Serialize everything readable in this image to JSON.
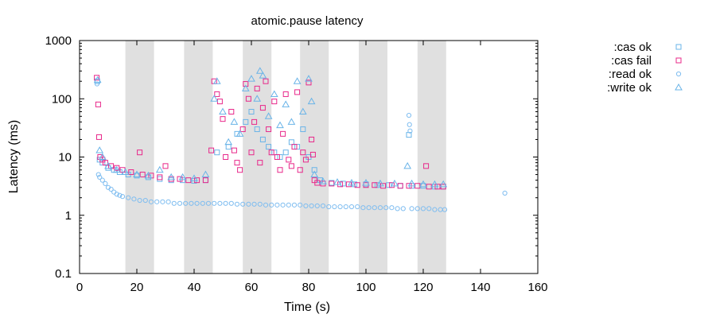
{
  "chart_data": {
    "type": "scatter",
    "title": "atomic.pause latency",
    "xlabel": "Time (s)",
    "ylabel": "Latency (ms)",
    "xlim": [
      0,
      160
    ],
    "ylim": [
      0.1,
      1000
    ],
    "yscale": "log",
    "x_ticks": [
      0,
      20,
      40,
      60,
      80,
      100,
      120,
      140,
      160
    ],
    "x_tick_labels": [
      "0",
      "20",
      "40",
      "60",
      "80",
      "100",
      "120",
      "140",
      "160"
    ],
    "y_ticks": [
      0.1,
      1,
      10,
      100,
      1000
    ],
    "y_tick_labels": [
      "0.1",
      "1",
      "10",
      "100",
      "1000"
    ],
    "grid": false,
    "legend_position": "top-right, outside plot",
    "shaded_intervals": [
      [
        16,
        26
      ],
      [
        36.5,
        46.5
      ],
      [
        57,
        67
      ],
      [
        77,
        87
      ],
      [
        97.5,
        107.5
      ],
      [
        118,
        128
      ]
    ],
    "shaded_color": "#e0e0e0",
    "series": [
      {
        "name": ":cas ok",
        "marker": "square",
        "color": "#6ab4e8",
        "points": [
          [
            6.2,
            200
          ],
          [
            7,
            9
          ],
          [
            8,
            8
          ],
          [
            10,
            6.5
          ],
          [
            12,
            6
          ],
          [
            14,
            5.5
          ],
          [
            17,
            5
          ],
          [
            20,
            4.8
          ],
          [
            24,
            4.5
          ],
          [
            28,
            4.2
          ],
          [
            32,
            4
          ],
          [
            36,
            4
          ],
          [
            40,
            3.9
          ],
          [
            44,
            4
          ],
          [
            48,
            12
          ],
          [
            52,
            15
          ],
          [
            55,
            25
          ],
          [
            58,
            40
          ],
          [
            60,
            60
          ],
          [
            62,
            30
          ],
          [
            64,
            20
          ],
          [
            66,
            15
          ],
          [
            68,
            12
          ],
          [
            70,
            10
          ],
          [
            72,
            12
          ],
          [
            74,
            18
          ],
          [
            76,
            15
          ],
          [
            78,
            30
          ],
          [
            80,
            10
          ],
          [
            82,
            6
          ],
          [
            84,
            4
          ],
          [
            88,
            3.6
          ],
          [
            92,
            3.5
          ],
          [
            96,
            3.4
          ],
          [
            100,
            3.4
          ],
          [
            104,
            3.3
          ],
          [
            108,
            3.3
          ],
          [
            112,
            3.2
          ],
          [
            115,
            24
          ],
          [
            116,
            3.2
          ],
          [
            120,
            3.2
          ],
          [
            124,
            3.1
          ],
          [
            127,
            3.1
          ]
        ]
      },
      {
        "name": ":cas fail",
        "marker": "square",
        "color": "#e8288a",
        "points": [
          [
            6,
            230
          ],
          [
            6.5,
            80
          ],
          [
            6.8,
            22
          ],
          [
            7.2,
            10
          ],
          [
            8,
            9
          ],
          [
            9,
            8
          ],
          [
            11,
            7
          ],
          [
            13,
            6.5
          ],
          [
            15,
            6
          ],
          [
            18,
            5.5
          ],
          [
            21,
            12
          ],
          [
            22,
            5
          ],
          [
            25,
            4.8
          ],
          [
            28,
            4.5
          ],
          [
            30,
            7
          ],
          [
            32,
            4.2
          ],
          [
            35,
            4.2
          ],
          [
            38,
            4
          ],
          [
            41,
            4
          ],
          [
            44,
            4
          ],
          [
            46,
            13
          ],
          [
            47,
            200
          ],
          [
            48,
            120
          ],
          [
            49,
            90
          ],
          [
            50,
            45
          ],
          [
            51,
            10
          ],
          [
            53,
            60
          ],
          [
            54,
            13
          ],
          [
            55,
            8
          ],
          [
            56,
            6
          ],
          [
            57,
            30
          ],
          [
            58,
            180
          ],
          [
            59,
            100
          ],
          [
            60,
            12
          ],
          [
            61,
            40
          ],
          [
            62,
            150
          ],
          [
            63,
            8
          ],
          [
            64,
            70
          ],
          [
            65,
            200
          ],
          [
            66,
            30
          ],
          [
            67,
            12
          ],
          [
            68,
            90
          ],
          [
            69,
            10
          ],
          [
            70,
            6
          ],
          [
            71,
            25
          ],
          [
            72,
            120
          ],
          [
            73,
            9
          ],
          [
            74,
            7
          ],
          [
            75,
            15
          ],
          [
            76,
            130
          ],
          [
            77,
            6
          ],
          [
            78,
            12
          ],
          [
            79,
            9
          ],
          [
            80,
            190
          ],
          [
            81,
            20
          ],
          [
            81.5,
            11
          ],
          [
            82,
            4
          ],
          [
            83,
            3.6
          ],
          [
            85,
            3.5
          ],
          [
            88,
            3.5
          ],
          [
            91,
            3.4
          ],
          [
            94,
            3.4
          ],
          [
            97,
            3.3
          ],
          [
            100,
            3.3
          ],
          [
            103,
            3.3
          ],
          [
            106,
            3.2
          ],
          [
            109,
            3.3
          ],
          [
            112,
            3.2
          ],
          [
            115,
            3.2
          ],
          [
            118,
            3.2
          ],
          [
            121,
            7
          ],
          [
            122,
            3.1
          ],
          [
            125,
            3.1
          ],
          [
            127,
            3.1
          ]
        ]
      },
      {
        "name": ":read ok",
        "marker": "circle",
        "color": "#7fbdf0",
        "points": [
          [
            6.1,
            180
          ],
          [
            6.6,
            5
          ],
          [
            7,
            4.5
          ],
          [
            8,
            4
          ],
          [
            9,
            3.5
          ],
          [
            10,
            3
          ],
          [
            11,
            2.8
          ],
          [
            12,
            2.5
          ],
          [
            13,
            2.3
          ],
          [
            14,
            2.2
          ],
          [
            15,
            2.1
          ],
          [
            17,
            2
          ],
          [
            19,
            1.9
          ],
          [
            21,
            1.8
          ],
          [
            23,
            1.8
          ],
          [
            25,
            1.7
          ],
          [
            27,
            1.7
          ],
          [
            29,
            1.7
          ],
          [
            31,
            1.7
          ],
          [
            33,
            1.6
          ],
          [
            35,
            1.6
          ],
          [
            37,
            1.6
          ],
          [
            39,
            1.6
          ],
          [
            41,
            1.6
          ],
          [
            43,
            1.6
          ],
          [
            45,
            1.6
          ],
          [
            47,
            1.6
          ],
          [
            49,
            1.6
          ],
          [
            51,
            1.6
          ],
          [
            53,
            1.6
          ],
          [
            55,
            1.55
          ],
          [
            57,
            1.55
          ],
          [
            59,
            1.55
          ],
          [
            61,
            1.55
          ],
          [
            63,
            1.55
          ],
          [
            65,
            1.5
          ],
          [
            67,
            1.5
          ],
          [
            69,
            1.5
          ],
          [
            71,
            1.5
          ],
          [
            73,
            1.5
          ],
          [
            75,
            1.5
          ],
          [
            77,
            1.5
          ],
          [
            79,
            1.45
          ],
          [
            81,
            1.45
          ],
          [
            83,
            1.45
          ],
          [
            85,
            1.45
          ],
          [
            87,
            1.4
          ],
          [
            89,
            1.4
          ],
          [
            91,
            1.4
          ],
          [
            93,
            1.4
          ],
          [
            95,
            1.4
          ],
          [
            97,
            1.4
          ],
          [
            99,
            1.35
          ],
          [
            101,
            1.35
          ],
          [
            103,
            1.35
          ],
          [
            105,
            1.35
          ],
          [
            107,
            1.35
          ],
          [
            109,
            1.35
          ],
          [
            111,
            1.3
          ],
          [
            113,
            1.3
          ],
          [
            115,
            52
          ],
          [
            115.2,
            36
          ],
          [
            115.4,
            28
          ],
          [
            116,
            1.3
          ],
          [
            118,
            1.3
          ],
          [
            120,
            1.3
          ],
          [
            122,
            1.3
          ],
          [
            124,
            1.25
          ],
          [
            126,
            1.25
          ],
          [
            127.5,
            1.25
          ],
          [
            148.5,
            2.4
          ]
        ]
      },
      {
        "name": ":write ok",
        "marker": "triangle",
        "color": "#6ab4e8",
        "points": [
          [
            6.3,
            210
          ],
          [
            7,
            13
          ],
          [
            8,
            10
          ],
          [
            10,
            7
          ],
          [
            13,
            6
          ],
          [
            16,
            5.5
          ],
          [
            20,
            5
          ],
          [
            24,
            4.8
          ],
          [
            28,
            6
          ],
          [
            32,
            4.5
          ],
          [
            36,
            4.5
          ],
          [
            40,
            4.3
          ],
          [
            44,
            5
          ],
          [
            47,
            100
          ],
          [
            48,
            200
          ],
          [
            50,
            60
          ],
          [
            52,
            18
          ],
          [
            54,
            40
          ],
          [
            56,
            25
          ],
          [
            58,
            150
          ],
          [
            60,
            220
          ],
          [
            62,
            100
          ],
          [
            63,
            300
          ],
          [
            64,
            250
          ],
          [
            66,
            50
          ],
          [
            68,
            120
          ],
          [
            70,
            35
          ],
          [
            72,
            80
          ],
          [
            74,
            40
          ],
          [
            76,
            200
          ],
          [
            78,
            60
          ],
          [
            80,
            220
          ],
          [
            81,
            90
          ],
          [
            82,
            5
          ],
          [
            85,
            3.8
          ],
          [
            90,
            3.7
          ],
          [
            95,
            3.6
          ],
          [
            100,
            3.6
          ],
          [
            105,
            3.5
          ],
          [
            110,
            3.5
          ],
          [
            114.5,
            7
          ],
          [
            116,
            3.5
          ],
          [
            120,
            3.4
          ],
          [
            124,
            3.4
          ],
          [
            127,
            3.4
          ]
        ]
      }
    ]
  }
}
